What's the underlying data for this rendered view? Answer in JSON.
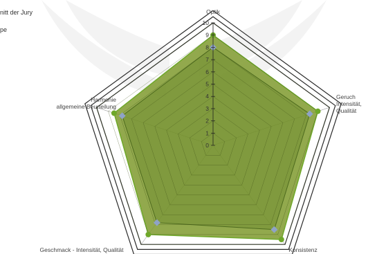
{
  "legend": {
    "series_a_label": "nitt der Jury",
    "series_b_label": "pe"
  },
  "chart_data": {
    "type": "radar",
    "axes": [
      [
        "Optik"
      ],
      [
        "Geruch",
        "Intensität,",
        "Qualität"
      ],
      [
        "Konsistenz"
      ],
      [
        "Geschmack - Intensität, Qualität"
      ],
      [
        "Harmonie",
        "allgemeine Beurteilung"
      ]
    ],
    "rlim": [
      0,
      10
    ],
    "ticks": [
      "0",
      "1",
      "2",
      "3",
      "4",
      "5",
      "6",
      "7",
      "8",
      "9",
      "10"
    ],
    "series": [
      {
        "values": [
          9,
          9,
          9.5,
          9,
          8.5
        ]
      },
      {
        "values": [
          8,
          8.3,
          8.5,
          7.8,
          7.8
        ]
      }
    ],
    "colors": {
      "series_a": "#6fa82a",
      "series_b": "#8fa3c7",
      "fill": "#7f9a2e",
      "grid": "#2a2a2a",
      "watermark": "#f3f3f3"
    },
    "legend_position": "top-left"
  }
}
